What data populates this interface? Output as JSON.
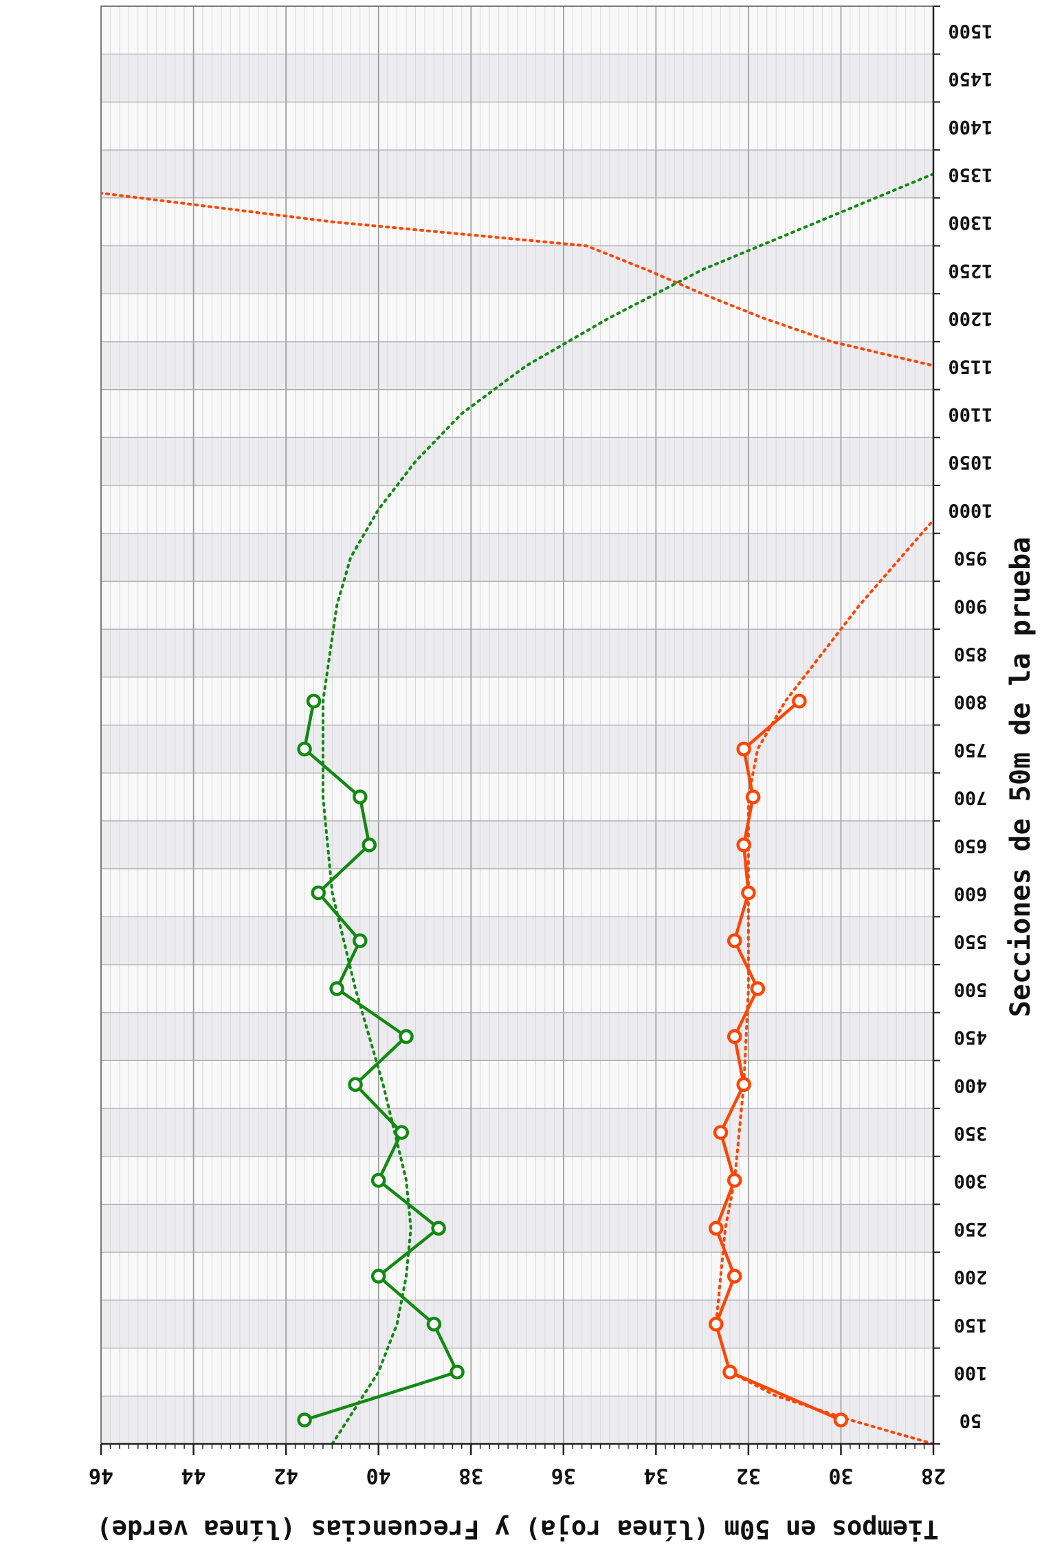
{
  "chart_data": {
    "type": "line",
    "orientation": "rotated-180",
    "xlabel": "Secciones de 50m de la prueba",
    "ylabel": "Tiempos en 50m (línea roja) y Frecuencias (línea verde)",
    "x_ticks": [
      50,
      100,
      150,
      200,
      250,
      300,
      350,
      400,
      450,
      500,
      550,
      600,
      650,
      700,
      750,
      800,
      850,
      900,
      950,
      1000,
      1050,
      1100,
      1150,
      1200,
      1250,
      1300,
      1350,
      1400,
      1450,
      1500
    ],
    "x_tick_labels": [
      "50",
      "100",
      "150",
      "200",
      "250",
      "300",
      "350",
      "400",
      "450",
      "500",
      "550",
      "600",
      "650",
      "700",
      "750",
      "800",
      "850",
      "900",
      "950",
      "1000",
      "1050",
      "1100",
      "1150",
      "1200",
      "1250",
      "1300",
      "1350",
      "1400",
      "1450",
      "1500"
    ],
    "xlim": [
      25,
      1525
    ],
    "y_ticks": [
      28,
      30,
      32,
      34,
      36,
      38,
      40,
      42,
      44,
      46
    ],
    "y_tick_labels": [
      "28",
      "30",
      "32",
      "34",
      "36",
      "38",
      "40",
      "42",
      "44",
      "46"
    ],
    "ylim": [
      28,
      46
    ],
    "grid": true,
    "series": [
      {
        "color": "#ff4500",
        "x": [
          50,
          100,
          150,
          200,
          250,
          300,
          350,
          400,
          450,
          500,
          550,
          600,
          650,
          700,
          750,
          800
        ],
        "values": [
          30.0,
          32.4,
          32.7,
          32.3,
          32.7,
          32.3,
          32.6,
          32.1,
          32.3,
          31.8,
          32.3,
          32.0,
          32.1,
          31.9,
          32.1,
          30.9
        ]
      },
      {
        "color": "#128a12",
        "x": [
          50,
          100,
          150,
          200,
          250,
          300,
          350,
          400,
          450,
          500,
          550,
          600,
          650,
          700,
          750,
          800
        ],
        "values": [
          41.6,
          38.3,
          38.8,
          40.0,
          38.7,
          40.0,
          39.5,
          40.5,
          39.4,
          40.9,
          40.4,
          41.3,
          40.2,
          40.4,
          41.6,
          41.4
        ]
      }
    ],
    "trendlines": [
      {
        "color": "#ff4500",
        "style": "dotted",
        "x": [
          25,
          50,
          75,
          100,
          150,
          200,
          250,
          300,
          400,
          500,
          600,
          700,
          750,
          800,
          850,
          900,
          950,
          1000,
          1050,
          1100,
          1150,
          1175,
          1200,
          1225,
          1250,
          1275,
          1300,
          1330
        ],
        "values": [
          28.0,
          29.8,
          31.4,
          32.4,
          32.7,
          32.6,
          32.5,
          32.3,
          32.1,
          32.0,
          32.0,
          32.0,
          31.8,
          31.2,
          30.4,
          29.6,
          28.7,
          27.8,
          26.9,
          26.0,
          28.0,
          30.2,
          31.7,
          33.0,
          34.2,
          35.5,
          41.0,
          46.0
        ]
      },
      {
        "color": "#128a12",
        "style": "dotted",
        "x": [
          25,
          100,
          150,
          200,
          250,
          300,
          400,
          500,
          600,
          700,
          800,
          900,
          950,
          1000,
          1050,
          1100,
          1150,
          1200,
          1250,
          1300,
          1350
        ],
        "values": [
          41.0,
          40.0,
          39.6,
          39.4,
          39.3,
          39.4,
          39.9,
          40.5,
          41.0,
          41.2,
          41.2,
          40.9,
          40.6,
          40.0,
          39.2,
          38.2,
          36.8,
          35.0,
          33.0,
          30.5,
          28.0
        ]
      }
    ]
  }
}
